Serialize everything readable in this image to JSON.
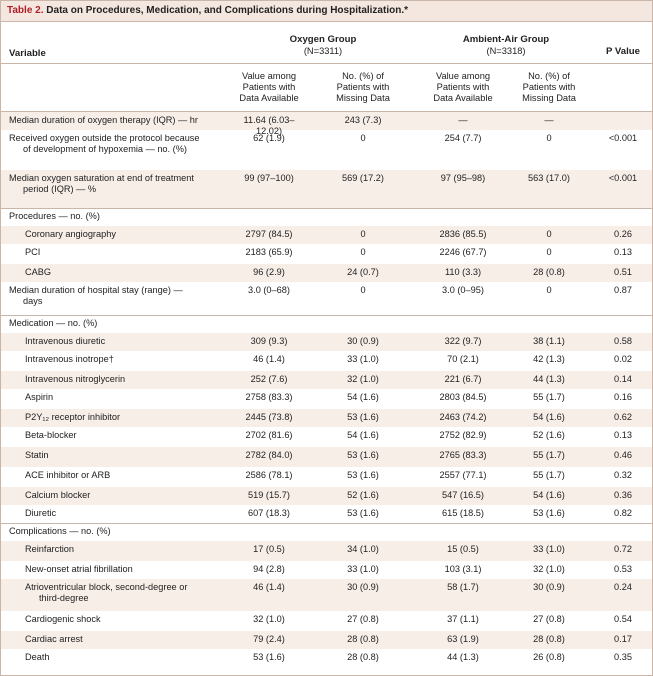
{
  "table": {
    "number": "Table 2.",
    "title": "Data on Procedures, Medication, and Complications during Hospitalization.*"
  },
  "header": {
    "variable": "Variable",
    "oxygen_group": "Oxygen Group",
    "oxygen_n": "(N=3311)",
    "air_group": "Ambient-Air Group",
    "air_n": "(N=3318)",
    "p_value": "P Value",
    "sub_value_1": "Value among",
    "sub_value_2": "Patients with",
    "sub_value_3": "Data Available",
    "sub_missing_1": "No. (%) of",
    "sub_missing_2": "Patients with",
    "sub_missing_3": "Missing Data"
  },
  "rows": [
    {
      "label": "Median duration of oxygen therapy (IQR) — hr",
      "label2": "",
      "ox_val": "11.64 (6.03–12.02)",
      "ox_miss": "243 (7.3)",
      "air_val": "—",
      "air_miss": "—",
      "p": ""
    },
    {
      "label": "Received oxygen outside the protocol because",
      "label2": "of development of hypoxemia — no. (%)",
      "ox_val": "62 (1.9)",
      "ox_miss": "0",
      "air_val": "254 (7.7)",
      "air_miss": "0",
      "p": "<0.001"
    },
    {
      "label": "Median oxygen saturation at end of treatment",
      "label2": "period (IQR) — %",
      "ox_val": "99 (97–100)",
      "ox_miss": "569 (17.2)",
      "air_val": "97 (95–98)",
      "air_miss": "563 (17.0)",
      "p": "<0.001"
    },
    {
      "label": "Procedures — no. (%)",
      "label2": "",
      "ox_val": "",
      "ox_miss": "",
      "air_val": "",
      "air_miss": "",
      "p": ""
    },
    {
      "label": "Coronary angiography",
      "label2": "",
      "ox_val": "2797 (84.5)",
      "ox_miss": "0",
      "air_val": "2836 (85.5)",
      "air_miss": "0",
      "p": "0.26"
    },
    {
      "label": "PCI",
      "label2": "",
      "ox_val": "2183 (65.9)",
      "ox_miss": "0",
      "air_val": "2246 (67.7)",
      "air_miss": "0",
      "p": "0.13"
    },
    {
      "label": "CABG",
      "label2": "",
      "ox_val": "96 (2.9)",
      "ox_miss": "24 (0.7)",
      "air_val": "110 (3.3)",
      "air_miss": "28 (0.8)",
      "p": "0.51"
    },
    {
      "label": "Median duration of hospital stay (range) —",
      "label2": "days",
      "ox_val": "3.0 (0–68)",
      "ox_miss": "0",
      "air_val": "3.0 (0–95)",
      "air_miss": "0",
      "p": "0.87"
    },
    {
      "label": "Medication — no. (%)",
      "label2": "",
      "ox_val": "",
      "ox_miss": "",
      "air_val": "",
      "air_miss": "",
      "p": ""
    },
    {
      "label": "Intravenous diuretic",
      "label2": "",
      "ox_val": "309 (9.3)",
      "ox_miss": "30 (0.9)",
      "air_val": "322 (9.7)",
      "air_miss": "38 (1.1)",
      "p": "0.58"
    },
    {
      "label": "Intravenous inotrope†",
      "label2": "",
      "ox_val": "46 (1.4)",
      "ox_miss": "33 (1.0)",
      "air_val": "70 (2.1)",
      "air_miss": "42 (1.3)",
      "p": "0.02"
    },
    {
      "label": "Intravenous nitroglycerin",
      "label2": "",
      "ox_val": "252 (7.6)",
      "ox_miss": "32 (1.0)",
      "air_val": "221 (6.7)",
      "air_miss": "44 (1.3)",
      "p": "0.14"
    },
    {
      "label": "Aspirin",
      "label2": "",
      "ox_val": "2758 (83.3)",
      "ox_miss": "54 (1.6)",
      "air_val": "2803 (84.5)",
      "air_miss": "55 (1.7)",
      "p": "0.16"
    },
    {
      "label": "P2Y₁₂ receptor inhibitor",
      "label2": "",
      "ox_val": "2445 (73.8)",
      "ox_miss": "53 (1.6)",
      "air_val": "2463 (74.2)",
      "air_miss": "54 (1.6)",
      "p": "0.62"
    },
    {
      "label": "Beta-blocker",
      "label2": "",
      "ox_val": "2702 (81.6)",
      "ox_miss": "54 (1.6)",
      "air_val": "2752 (82.9)",
      "air_miss": "52 (1.6)",
      "p": "0.13"
    },
    {
      "label": "Statin",
      "label2": "",
      "ox_val": "2782 (84.0)",
      "ox_miss": "53 (1.6)",
      "air_val": "2765 (83.3)",
      "air_miss": "55 (1.7)",
      "p": "0.46"
    },
    {
      "label": "ACE inhibitor or ARB",
      "label2": "",
      "ox_val": "2586 (78.1)",
      "ox_miss": "53 (1.6)",
      "air_val": "2557 (77.1)",
      "air_miss": "55 (1.7)",
      "p": "0.32"
    },
    {
      "label": "Calcium blocker",
      "label2": "",
      "ox_val": "519 (15.7)",
      "ox_miss": "52 (1.6)",
      "air_val": "547 (16.5)",
      "air_miss": "54 (1.6)",
      "p": "0.36"
    },
    {
      "label": "Diuretic",
      "label2": "",
      "ox_val": "607 (18.3)",
      "ox_miss": "53 (1.6)",
      "air_val": "615 (18.5)",
      "air_miss": "53 (1.6)",
      "p": "0.82"
    },
    {
      "label": "Complications — no. (%)",
      "label2": "",
      "ox_val": "",
      "ox_miss": "",
      "air_val": "",
      "air_miss": "",
      "p": ""
    },
    {
      "label": "Reinfarction",
      "label2": "",
      "ox_val": "17 (0.5)",
      "ox_miss": "34 (1.0)",
      "air_val": "15 (0.5)",
      "air_miss": "33 (1.0)",
      "p": "0.72"
    },
    {
      "label": "New-onset atrial fibrillation",
      "label2": "",
      "ox_val": "94 (2.8)",
      "ox_miss": "33 (1.0)",
      "air_val": "103 (3.1)",
      "air_miss": "32 (1.0)",
      "p": "0.53"
    },
    {
      "label": "Atrioventricular block, second-degree or",
      "label2": "third-degree",
      "ox_val": "46 (1.4)",
      "ox_miss": "30 (0.9)",
      "air_val": "58 (1.7)",
      "air_miss": "30 (0.9)",
      "p": "0.24"
    },
    {
      "label": "Cardiogenic shock",
      "label2": "",
      "ox_val": "32 (1.0)",
      "ox_miss": "27 (0.8)",
      "air_val": "37 (1.1)",
      "air_miss": "27 (0.8)",
      "p": "0.54"
    },
    {
      "label": "Cardiac arrest",
      "label2": "",
      "ox_val": "79 (2.4)",
      "ox_miss": "28 (0.8)",
      "air_val": "63 (1.9)",
      "air_miss": "28 (0.8)",
      "p": "0.17"
    },
    {
      "label": "Death",
      "label2": "",
      "ox_val": "53 (1.6)",
      "ox_miss": "28 (0.8)",
      "air_val": "44 (1.3)",
      "air_miss": "26 (0.8)",
      "p": "0.35"
    }
  ],
  "colors": {
    "title_bg": "#f4e7df",
    "title_number": "#b0202a",
    "row_shade": "#f7eee8",
    "border": "#c9b6a8"
  }
}
